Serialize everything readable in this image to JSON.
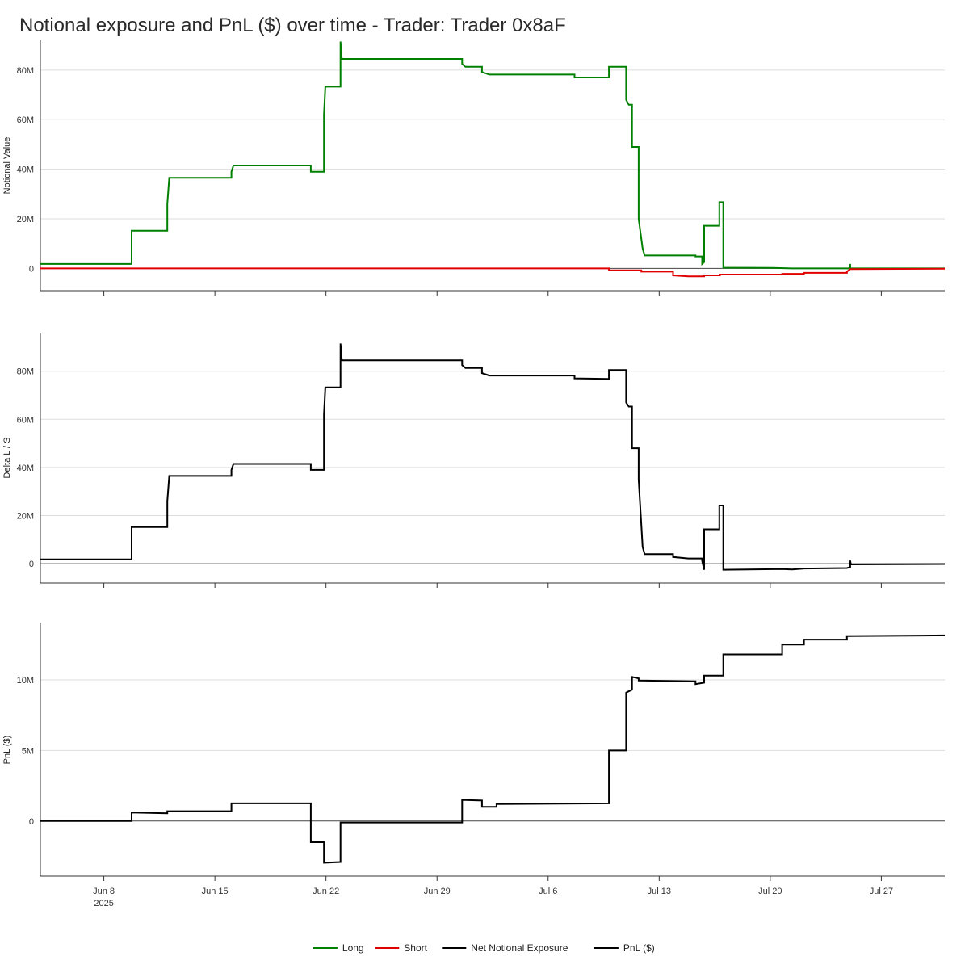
{
  "title": "Notional exposure and PnL ($) over time - Trader: Trader 0x8aF",
  "chart_data": {
    "type": "line",
    "title": "Notional exposure and PnL ($) over time - Trader: Trader 0x8aF",
    "x_range": [
      "2025-06-04",
      "2025-07-31"
    ],
    "x_ticks": [
      {
        "date": "2025-06-08",
        "label": "Jun 8",
        "sublabel": "2025"
      },
      {
        "date": "2025-06-15",
        "label": "Jun 15"
      },
      {
        "date": "2025-06-22",
        "label": "Jun 22"
      },
      {
        "date": "2025-06-29",
        "label": "Jun 29"
      },
      {
        "date": "2025-07-06",
        "label": "Jul 6"
      },
      {
        "date": "2025-07-13",
        "label": "Jul 13"
      },
      {
        "date": "2025-07-20",
        "label": "Jul 20"
      },
      {
        "date": "2025-07-27",
        "label": "Jul 27"
      }
    ],
    "grid": true,
    "legend_position": "bottom-center",
    "legend": [
      {
        "name": "Long",
        "color": "#008000"
      },
      {
        "name": "Short",
        "color": "#e00000"
      },
      {
        "name": "Net Notional Exposure",
        "color": "#000000"
      },
      {
        "name": "PnL ($)",
        "color": "#000000"
      }
    ],
    "panels": [
      {
        "ylabel": "Notional Value",
        "ylim": [
          -9000000,
          92000000
        ],
        "y_ticks": [
          {
            "v": 0,
            "label": "0"
          },
          {
            "v": 20000000,
            "label": "20M"
          },
          {
            "v": 40000000,
            "label": "40M"
          },
          {
            "v": 60000000,
            "label": "60M"
          },
          {
            "v": 80000000,
            "label": "80M"
          }
        ],
        "series": [
          {
            "name": "Long",
            "color": "#008000",
            "points": [
              [
                "2025-06-04",
                1800000
              ],
              [
                "2025-06-09 18:00",
                1800000
              ],
              [
                "2025-06-09 18:00",
                15200000
              ],
              [
                "2025-06-12 00:00",
                15200000
              ],
              [
                "2025-06-12 00:00",
                26000000
              ],
              [
                "2025-06-12 03:00",
                36500000
              ],
              [
                "2025-06-16 01:00",
                36500000
              ],
              [
                "2025-06-16 01:00",
                39000000
              ],
              [
                "2025-06-16 04:00",
                41500000
              ],
              [
                "2025-06-21 01:00",
                41500000
              ],
              [
                "2025-06-21 01:00",
                39000000
              ],
              [
                "2025-06-21 21:00",
                39000000
              ],
              [
                "2025-06-21 21:00",
                62000000
              ],
              [
                "2025-06-21 23:00",
                73300000
              ],
              [
                "2025-06-22 22:00",
                73300000
              ],
              [
                "2025-06-22 22:00",
                91500000
              ],
              [
                "2025-06-23 00:00",
                84500000
              ],
              [
                "2025-06-30 14:00",
                84500000
              ],
              [
                "2025-06-30 14:00",
                82500000
              ],
              [
                "2025-06-30 19:00",
                81300000
              ],
              [
                "2025-07-01 20:00",
                81300000
              ],
              [
                "2025-07-01 20:00",
                79200000
              ],
              [
                "2025-07-02 07:00",
                78200000
              ],
              [
                "2025-07-07 16:00",
                78200000
              ],
              [
                "2025-07-07 16:00",
                77000000
              ],
              [
                "2025-07-09 20:00",
                77000000
              ],
              [
                "2025-07-09 20:00",
                81300000
              ],
              [
                "2025-07-10 22:00",
                81300000
              ],
              [
                "2025-07-10 22:00",
                68000000
              ],
              [
                "2025-07-11 02:00",
                66000000
              ],
              [
                "2025-07-11 07:00",
                66000000
              ],
              [
                "2025-07-11 07:00",
                49000000
              ],
              [
                "2025-07-11 17:00",
                49000000
              ],
              [
                "2025-07-11 17:00",
                20000000
              ],
              [
                "2025-07-11 23:00",
                8000000
              ],
              [
                "2025-07-12 02:00",
                5200000
              ],
              [
                "2025-07-15 07:00",
                5200000
              ],
              [
                "2025-07-15 07:00",
                4800000
              ],
              [
                "2025-07-15 17:00",
                4800000
              ],
              [
                "2025-07-15 17:00",
                1800000
              ],
              [
                "2025-07-15 20:00",
                2500000
              ],
              [
                "2025-07-15 20:00",
                17200000
              ],
              [
                "2025-07-16 19:00",
                17200000
              ],
              [
                "2025-07-16 19:00",
                26700000
              ],
              [
                "2025-07-17 01:00",
                26700000
              ],
              [
                "2025-07-17 01:00",
                300000
              ],
              [
                "2025-07-20 03:00",
                200000
              ],
              [
                "2025-07-21 09:00",
                0
              ],
              [
                "2025-07-25 01:00",
                0
              ],
              [
                "2025-07-25 01:00",
                1800000
              ],
              [
                "2025-07-25 01:00",
                0
              ],
              [
                "2025-07-31",
                0
              ]
            ]
          },
          {
            "name": "Short",
            "color": "#e00000",
            "points": [
              [
                "2025-06-04",
                0
              ],
              [
                "2025-07-09 20:00",
                0
              ],
              [
                "2025-07-09 20:00",
                -800000
              ],
              [
                "2025-07-11 21:00",
                -800000
              ],
              [
                "2025-07-11 21:00",
                -1300000
              ],
              [
                "2025-07-13 21:00",
                -1300000
              ],
              [
                "2025-07-13 21:00",
                -2800000
              ],
              [
                "2025-07-14 20:00",
                -3200000
              ],
              [
                "2025-07-15 20:00",
                -3200000
              ],
              [
                "2025-07-15 20:00",
                -2800000
              ],
              [
                "2025-07-16 20:00",
                -2800000
              ],
              [
                "2025-07-16 20:00",
                -2500000
              ],
              [
                "2025-07-20 18:00",
                -2500000
              ],
              [
                "2025-07-20 18:00",
                -2200000
              ],
              [
                "2025-07-22 03:00",
                -2200000
              ],
              [
                "2025-07-22 03:00",
                -1800000
              ],
              [
                "2025-07-24 20:00",
                -1800000
              ],
              [
                "2025-07-24 20:00",
                -1300000
              ],
              [
                "2025-07-25 01:00",
                -300000
              ],
              [
                "2025-07-31",
                -100000
              ]
            ]
          }
        ]
      },
      {
        "ylabel": "Delta L / S",
        "ylim": [
          -8000000,
          96000000
        ],
        "y_ticks": [
          {
            "v": 0,
            "label": "0"
          },
          {
            "v": 20000000,
            "label": "20M"
          },
          {
            "v": 40000000,
            "label": "40M"
          },
          {
            "v": 60000000,
            "label": "60M"
          },
          {
            "v": 80000000,
            "label": "80M"
          }
        ],
        "series": [
          {
            "name": "Net Notional Exposure",
            "color": "#000000",
            "points": [
              [
                "2025-06-04",
                1800000
              ],
              [
                "2025-06-09 18:00",
                1800000
              ],
              [
                "2025-06-09 18:00",
                15200000
              ],
              [
                "2025-06-12 00:00",
                15200000
              ],
              [
                "2025-06-12 00:00",
                26000000
              ],
              [
                "2025-06-12 03:00",
                36500000
              ],
              [
                "2025-06-16 01:00",
                36500000
              ],
              [
                "2025-06-16 01:00",
                39000000
              ],
              [
                "2025-06-16 04:00",
                41500000
              ],
              [
                "2025-06-21 01:00",
                41500000
              ],
              [
                "2025-06-21 01:00",
                39000000
              ],
              [
                "2025-06-21 21:00",
                39000000
              ],
              [
                "2025-06-21 21:00",
                62000000
              ],
              [
                "2025-06-21 23:00",
                73300000
              ],
              [
                "2025-06-22 22:00",
                73300000
              ],
              [
                "2025-06-22 22:00",
                91500000
              ],
              [
                "2025-06-23 00:00",
                84500000
              ],
              [
                "2025-06-30 14:00",
                84500000
              ],
              [
                "2025-06-30 14:00",
                82500000
              ],
              [
                "2025-06-30 19:00",
                81300000
              ],
              [
                "2025-07-01 20:00",
                81300000
              ],
              [
                "2025-07-01 20:00",
                79200000
              ],
              [
                "2025-07-02 07:00",
                78200000
              ],
              [
                "2025-07-07 16:00",
                78200000
              ],
              [
                "2025-07-07 16:00",
                77000000
              ],
              [
                "2025-07-09 20:00",
                76800000
              ],
              [
                "2025-07-09 20:00",
                80500000
              ],
              [
                "2025-07-10 22:00",
                80500000
              ],
              [
                "2025-07-10 22:00",
                67000000
              ],
              [
                "2025-07-11 02:00",
                65300000
              ],
              [
                "2025-07-11 07:00",
                65300000
              ],
              [
                "2025-07-11 07:00",
                48000000
              ],
              [
                "2025-07-11 17:00",
                48000000
              ],
              [
                "2025-07-11 17:00",
                35000000
              ],
              [
                "2025-07-11 23:00",
                7000000
              ],
              [
                "2025-07-12 02:00",
                4000000
              ],
              [
                "2025-07-13 21:00",
                4000000
              ],
              [
                "2025-07-13 21:00",
                2800000
              ],
              [
                "2025-07-14 20:00",
                2200000
              ],
              [
                "2025-07-15 17:00",
                2200000
              ],
              [
                "2025-07-15 17:00",
                1200000
              ],
              [
                "2025-07-15 20:00",
                -2500000
              ],
              [
                "2025-07-15 20:00",
                14300000
              ],
              [
                "2025-07-16 19:00",
                14300000
              ],
              [
                "2025-07-16 19:00",
                24200000
              ],
              [
                "2025-07-17 01:00",
                24200000
              ],
              [
                "2025-07-17 01:00",
                -2500000
              ],
              [
                "2025-07-20 18:00",
                -2200000
              ],
              [
                "2025-07-21 09:00",
                -2400000
              ],
              [
                "2025-07-22 03:00",
                -2000000
              ],
              [
                "2025-07-24 20:00",
                -1800000
              ],
              [
                "2025-07-25 01:00",
                -1400000
              ],
              [
                "2025-07-25 01:00",
                1300000
              ],
              [
                "2025-07-25 02:00",
                -300000
              ],
              [
                "2025-07-31",
                -100000
              ]
            ]
          }
        ]
      },
      {
        "ylabel": "PnL ($)",
        "ylim": [
          -3900000,
          14000000
        ],
        "y_ticks": [
          {
            "v": 0,
            "label": "0"
          },
          {
            "v": 5000000,
            "label": "5M"
          },
          {
            "v": 10000000,
            "label": "10M"
          }
        ],
        "series": [
          {
            "name": "PnL ($)",
            "color": "#000000",
            "points": [
              [
                "2025-06-04",
                0
              ],
              [
                "2025-06-09 18:00",
                0
              ],
              [
                "2025-06-09 18:00",
                600000
              ],
              [
                "2025-06-12 00:00",
                550000
              ],
              [
                "2025-06-12 00:00",
                700000
              ],
              [
                "2025-06-16 01:00",
                700000
              ],
              [
                "2025-06-16 01:00",
                1250000
              ],
              [
                "2025-06-21 01:00",
                1250000
              ],
              [
                "2025-06-21 01:00",
                -1500000
              ],
              [
                "2025-06-21 21:00",
                -1500000
              ],
              [
                "2025-06-21 21:00",
                -2950000
              ],
              [
                "2025-06-22 22:00",
                -2900000
              ],
              [
                "2025-06-22 22:00",
                -100000
              ],
              [
                "2025-06-30 14:00",
                -100000
              ],
              [
                "2025-06-30 14:00",
                1500000
              ],
              [
                "2025-07-01 20:00",
                1450000
              ],
              [
                "2025-07-01 20:00",
                1000000
              ],
              [
                "2025-07-02 18:00",
                1000000
              ],
              [
                "2025-07-02 18:00",
                1200000
              ],
              [
                "2025-07-09 20:00",
                1250000
              ],
              [
                "2025-07-09 20:00",
                5000000
              ],
              [
                "2025-07-10 22:00",
                5000000
              ],
              [
                "2025-07-10 22:00",
                9100000
              ],
              [
                "2025-07-11 07:00",
                9300000
              ],
              [
                "2025-07-11 07:00",
                10200000
              ],
              [
                "2025-07-11 17:00",
                10100000
              ],
              [
                "2025-07-11 17:00",
                9950000
              ],
              [
                "2025-07-15 07:00",
                9900000
              ],
              [
                "2025-07-15 07:00",
                9700000
              ],
              [
                "2025-07-15 20:00",
                9800000
              ],
              [
                "2025-07-15 20:00",
                10300000
              ],
              [
                "2025-07-17 01:00",
                10300000
              ],
              [
                "2025-07-17 01:00",
                11800000
              ],
              [
                "2025-07-20 18:00",
                11800000
              ],
              [
                "2025-07-20 18:00",
                12500000
              ],
              [
                "2025-07-22 03:00",
                12500000
              ],
              [
                "2025-07-22 03:00",
                12850000
              ],
              [
                "2025-07-24 20:00",
                12850000
              ],
              [
                "2025-07-24 20:00",
                13100000
              ],
              [
                "2025-07-31",
                13150000
              ]
            ]
          }
        ]
      }
    ]
  }
}
